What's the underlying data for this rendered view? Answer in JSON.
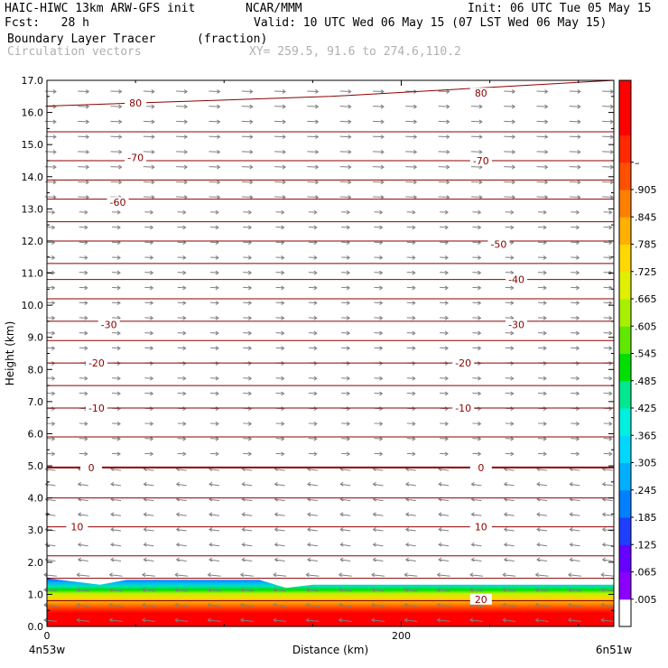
{
  "header": {
    "model": "HAIC-HIWC 13km ARW-GFS init",
    "center": "NCAR/MMM",
    "init": "Init: 06 UTC Tue 05 May 15",
    "fcst": "Fcst:   28 h",
    "valid": "Valid: 10 UTC Wed 06 May 15 (07 LST Wed 06 May 15)",
    "field1": "Boundary Layer Tracer",
    "field1_units": "(fraction)",
    "field2": "Circulation vectors",
    "xy": "XY= 259.5, 91.6 to 274.6,110.2"
  },
  "chart_data": {
    "type": "heatmap",
    "title": "Boundary Layer Tracer (fraction)",
    "xlabel": "Distance (km)",
    "ylabel": "Height (km)",
    "x_left_label": "4n53w",
    "x_right_label": "6n51w",
    "x_ticks": [
      0,
      200
    ],
    "xlim": [
      0,
      320
    ],
    "ylim": [
      0,
      17
    ],
    "y_ticks": [
      "0.0",
      "1.0",
      "2.0",
      "3.0",
      "4.0",
      "5.0",
      "6.0",
      "7.0",
      "8.0",
      "9.0",
      "10.0",
      "11.0",
      "12.0",
      "13.0",
      "14.0",
      "15.0",
      "16.0",
      "17.0"
    ],
    "colorbar": {
      "labels": [
        ".005",
        ".065",
        ".125",
        ".185",
        ".245",
        ".305",
        ".365",
        ".425",
        ".485",
        ".545",
        ".605",
        ".665",
        ".725",
        ".785",
        ".845",
        ".905",
        "–"
      ],
      "colors": [
        "#ffffff",
        "#8c00ff",
        "#6600ff",
        "#1f3fff",
        "#0080ff",
        "#00b0ff",
        "#00d8ff",
        "#00f0e0",
        "#00e890",
        "#00e000",
        "#60e800",
        "#a8f000",
        "#e0f000",
        "#ffd800",
        "#ffb000",
        "#ff8000",
        "#ff5000",
        "#ff2800",
        "#ff0000",
        "#ff0000"
      ]
    },
    "boundary_layer_top_km": [
      {
        "x": 0,
        "y": 1.5
      },
      {
        "x": 30,
        "y": 1.3
      },
      {
        "x": 45,
        "y": 1.45
      },
      {
        "x": 120,
        "y": 1.45
      },
      {
        "x": 135,
        "y": 1.2
      },
      {
        "x": 150,
        "y": 1.3
      },
      {
        "x": 200,
        "y": 1.3
      },
      {
        "x": 320,
        "y": 1.3
      }
    ],
    "temperature_contours": [
      {
        "label": "80",
        "y": [
          16.2,
          16.5,
          17.0
        ],
        "label_pos": [
          [
            50,
            16.3
          ],
          [
            245,
            16.6
          ]
        ]
      },
      {
        "label": "-70",
        "y": [
          14.5,
          14.5
        ],
        "label_pos": [
          [
            50,
            14.6
          ],
          [
            245,
            14.5
          ]
        ]
      },
      {
        "label": "-60",
        "y": [
          13.3,
          13.3
        ],
        "label_pos": [
          [
            40,
            13.2
          ]
        ]
      },
      {
        "label": "-50",
        "y": [
          12.0,
          12.0
        ],
        "label_pos": [
          [
            255,
            11.9
          ]
        ]
      },
      {
        "label": "-40",
        "y": [
          10.8,
          10.8
        ],
        "label_pos": [
          [
            265,
            10.8
          ]
        ]
      },
      {
        "label": "-30",
        "y": [
          9.5,
          9.5
        ],
        "label_pos": [
          [
            35,
            9.4
          ],
          [
            265,
            9.4
          ]
        ]
      },
      {
        "label": "-20",
        "y": [
          8.2,
          8.2
        ],
        "label_pos": [
          [
            28,
            8.2
          ],
          [
            235,
            8.2
          ]
        ]
      },
      {
        "label": "-10",
        "y": [
          6.8,
          6.8
        ],
        "label_pos": [
          [
            28,
            6.8
          ],
          [
            235,
            6.8
          ]
        ]
      },
      {
        "label": "0",
        "y": [
          4.95,
          4.95
        ],
        "label_pos": [
          [
            25,
            4.95
          ],
          [
            245,
            4.95
          ]
        ]
      },
      {
        "label": "10",
        "y": [
          3.1,
          3.1
        ],
        "label_pos": [
          [
            17,
            3.1
          ],
          [
            245,
            3.1
          ]
        ]
      },
      {
        "label": "20",
        "y": [
          0.8,
          0.8
        ],
        "label_pos": [
          [
            245,
            0.85
          ]
        ]
      }
    ],
    "extra_contour_levels_km": [
      17.0,
      15.4,
      13.9,
      12.6,
      11.3,
      10.2,
      8.9,
      7.5,
      5.9,
      4.0,
      2.2,
      1.5
    ],
    "colors": {
      "contour": "#8b0000",
      "vector": "#808080",
      "axis": "#000000"
    }
  }
}
